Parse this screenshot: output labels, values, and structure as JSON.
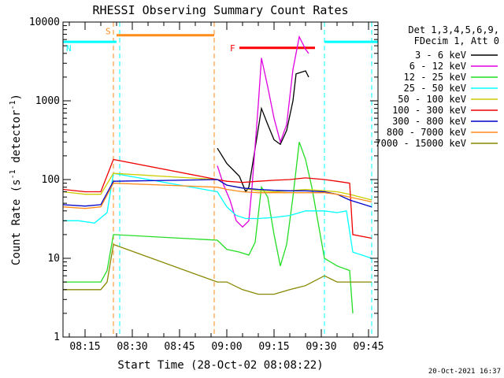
{
  "chart_data": {
    "type": "line",
    "title": "RHESSI Observing Summary Count Rates",
    "xlabel": "Start Time (28-Oct-02 08:08:22)",
    "ylabel": "Count Rate (s⁻¹ detector⁻¹)",
    "ylabel_parts": {
      "base": "Count Rate (s",
      "exp1": "-1",
      "mid": " detector",
      "exp2": "-1",
      "end": ")"
    },
    "y_scale": "log",
    "ylim": [
      1,
      10000
    ],
    "xlim": [
      "08:08",
      "09:48"
    ],
    "x_ticks": [
      "08:15",
      "08:30",
      "08:45",
      "09:00",
      "09:15",
      "09:30",
      "09:45"
    ],
    "y_ticks": [
      "1",
      "10",
      "100",
      "1000",
      "10000"
    ],
    "legend_position": "right",
    "legend_header": [
      "Det 1,3,4,5,6,9,",
      "FDecim 1, Att 0"
    ],
    "timestamp": "20-Oct-2021 16:37",
    "flags": [
      {
        "label": "S",
        "color": "#ff8c1a",
        "start": "08:25",
        "end": "08:56"
      },
      {
        "label": "N",
        "color": "#00ffff",
        "start": "08:08",
        "end": "08:25"
      },
      {
        "label": "N",
        "color": "#00ffff",
        "start": "09:31",
        "end": "09:48"
      },
      {
        "label": "F",
        "color": "#ff0000",
        "start": "09:04",
        "end": "09:28"
      }
    ],
    "markers": [
      {
        "time": "08:24",
        "color": "#ff8c1a"
      },
      {
        "time": "08:26",
        "color": "#00ffff"
      },
      {
        "time": "08:56",
        "color": "#ff8c1a"
      },
      {
        "time": "09:31",
        "color": "#00ffff"
      },
      {
        "time": "09:46",
        "color": "#00ffff"
      }
    ],
    "series": [
      {
        "name": "3 - 6 keV",
        "color": "#000000",
        "points": [
          [
            "08:57",
            250
          ],
          [
            "09:00",
            160
          ],
          [
            "09:04",
            110
          ],
          [
            "09:06",
            70
          ],
          [
            "09:07",
            80
          ],
          [
            "09:09",
            250
          ],
          [
            "09:11",
            800
          ],
          [
            "09:13",
            500
          ],
          [
            "09:15",
            320
          ],
          [
            "09:17",
            280
          ],
          [
            "09:19",
            420
          ],
          [
            "09:21",
            1000
          ],
          [
            "09:22",
            2200
          ],
          [
            "09:25",
            2400
          ],
          [
            "09:26",
            2000
          ]
        ]
      },
      {
        "name": "6 - 12 keV",
        "color": "#e000e0",
        "points": [
          [
            "08:57",
            150
          ],
          [
            "08:59",
            85
          ],
          [
            "09:01",
            55
          ],
          [
            "09:03",
            30
          ],
          [
            "09:05",
            25
          ],
          [
            "09:07",
            30
          ],
          [
            "09:08",
            80
          ],
          [
            "09:10",
            900
          ],
          [
            "09:11",
            3500
          ],
          [
            "09:13",
            1500
          ],
          [
            "09:15",
            600
          ],
          [
            "09:17",
            300
          ],
          [
            "09:19",
            500
          ],
          [
            "09:21",
            2500
          ],
          [
            "09:23",
            6500
          ],
          [
            "09:25",
            4500
          ],
          [
            "09:26",
            4000
          ]
        ]
      },
      {
        "name": "12 - 25 keV",
        "color": "#22dd22",
        "points": [
          [
            "08:08",
            5
          ],
          [
            "08:20",
            5
          ],
          [
            "08:22",
            7
          ],
          [
            "08:24",
            20
          ],
          [
            "08:57",
            17
          ],
          [
            "09:00",
            13
          ],
          [
            "09:04",
            12
          ],
          [
            "09:07",
            11
          ],
          [
            "09:09",
            16
          ],
          [
            "09:11",
            80
          ],
          [
            "09:13",
            60
          ],
          [
            "09:15",
            20
          ],
          [
            "09:17",
            8
          ],
          [
            "09:19",
            15
          ],
          [
            "09:21",
            60
          ],
          [
            "09:23",
            300
          ],
          [
            "09:25",
            180
          ],
          [
            "09:27",
            80
          ],
          [
            "09:31",
            10
          ],
          [
            "09:35",
            8
          ],
          [
            "09:39",
            7
          ],
          [
            "09:40",
            2
          ]
        ]
      },
      {
        "name": "25 - 50 keV",
        "color": "#00ffff",
        "points": [
          [
            "08:08",
            30
          ],
          [
            "08:13",
            30
          ],
          [
            "08:18",
            28
          ],
          [
            "08:22",
            38
          ],
          [
            "08:24",
            120
          ],
          [
            "08:57",
            70
          ],
          [
            "09:00",
            45
          ],
          [
            "09:03",
            35
          ],
          [
            "09:06",
            32
          ],
          [
            "09:10",
            32
          ],
          [
            "09:15",
            33
          ],
          [
            "09:20",
            35
          ],
          [
            "09:25",
            40
          ],
          [
            "09:31",
            40
          ],
          [
            "09:35",
            38
          ],
          [
            "09:38",
            40
          ],
          [
            "09:40",
            12
          ],
          [
            "09:46",
            10
          ]
        ]
      },
      {
        "name": "50 - 100 keV",
        "color": "#cccc00",
        "points": [
          [
            "08:08",
            70
          ],
          [
            "08:15",
            65
          ],
          [
            "08:20",
            65
          ],
          [
            "08:24",
            120
          ],
          [
            "08:57",
            100
          ],
          [
            "09:00",
            85
          ],
          [
            "09:05",
            78
          ],
          [
            "09:10",
            72
          ],
          [
            "09:15",
            70
          ],
          [
            "09:20",
            72
          ],
          [
            "09:25",
            75
          ],
          [
            "09:31",
            72
          ],
          [
            "09:35",
            70
          ],
          [
            "09:39",
            65
          ],
          [
            "09:46",
            55
          ]
        ]
      },
      {
        "name": "100 - 300 keV",
        "color": "#ee0000",
        "points": [
          [
            "08:08",
            75
          ],
          [
            "08:15",
            70
          ],
          [
            "08:20",
            70
          ],
          [
            "08:24",
            180
          ],
          [
            "08:57",
            100
          ],
          [
            "09:00",
            95
          ],
          [
            "09:05",
            92
          ],
          [
            "09:10",
            95
          ],
          [
            "09:15",
            98
          ],
          [
            "09:20",
            100
          ],
          [
            "09:25",
            105
          ],
          [
            "09:31",
            100
          ],
          [
            "09:35",
            95
          ],
          [
            "09:39",
            90
          ],
          [
            "09:40",
            20
          ],
          [
            "09:46",
            18
          ]
        ]
      },
      {
        "name": "300 - 800 keV",
        "color": "#0000cc",
        "points": [
          [
            "08:08",
            48
          ],
          [
            "08:15",
            46
          ],
          [
            "08:20",
            48
          ],
          [
            "08:24",
            95
          ],
          [
            "08:57",
            100
          ],
          [
            "09:00",
            85
          ],
          [
            "09:05",
            78
          ],
          [
            "09:10",
            75
          ],
          [
            "09:15",
            73
          ],
          [
            "09:20",
            72
          ],
          [
            "09:25",
            72
          ],
          [
            "09:31",
            70
          ],
          [
            "09:35",
            65
          ],
          [
            "09:39",
            55
          ],
          [
            "09:46",
            45
          ]
        ]
      },
      {
        "name": "800 - 7000 keV",
        "color": "#ff8c1a",
        "points": [
          [
            "08:08",
            45
          ],
          [
            "08:15",
            43
          ],
          [
            "08:20",
            45
          ],
          [
            "08:24",
            90
          ],
          [
            "08:57",
            80
          ],
          [
            "09:00",
            75
          ],
          [
            "09:05",
            70
          ],
          [
            "09:10",
            68
          ],
          [
            "09:15",
            68
          ],
          [
            "09:20",
            68
          ],
          [
            "09:25",
            68
          ],
          [
            "09:31",
            68
          ],
          [
            "09:35",
            65
          ],
          [
            "09:39",
            60
          ],
          [
            "09:46",
            52
          ]
        ]
      },
      {
        "name": "7000 - 15000 keV",
        "color": "#888800",
        "points": [
          [
            "08:08",
            4
          ],
          [
            "08:15",
            4
          ],
          [
            "08:20",
            4
          ],
          [
            "08:22",
            5
          ],
          [
            "08:24",
            15
          ],
          [
            "08:57",
            5
          ],
          [
            "09:00",
            5
          ],
          [
            "09:05",
            4
          ],
          [
            "09:10",
            3.5
          ],
          [
            "09:15",
            3.5
          ],
          [
            "09:20",
            4
          ],
          [
            "09:25",
            4.5
          ],
          [
            "09:31",
            6
          ],
          [
            "09:35",
            5
          ],
          [
            "09:39",
            5
          ],
          [
            "09:46",
            5
          ]
        ]
      }
    ]
  }
}
